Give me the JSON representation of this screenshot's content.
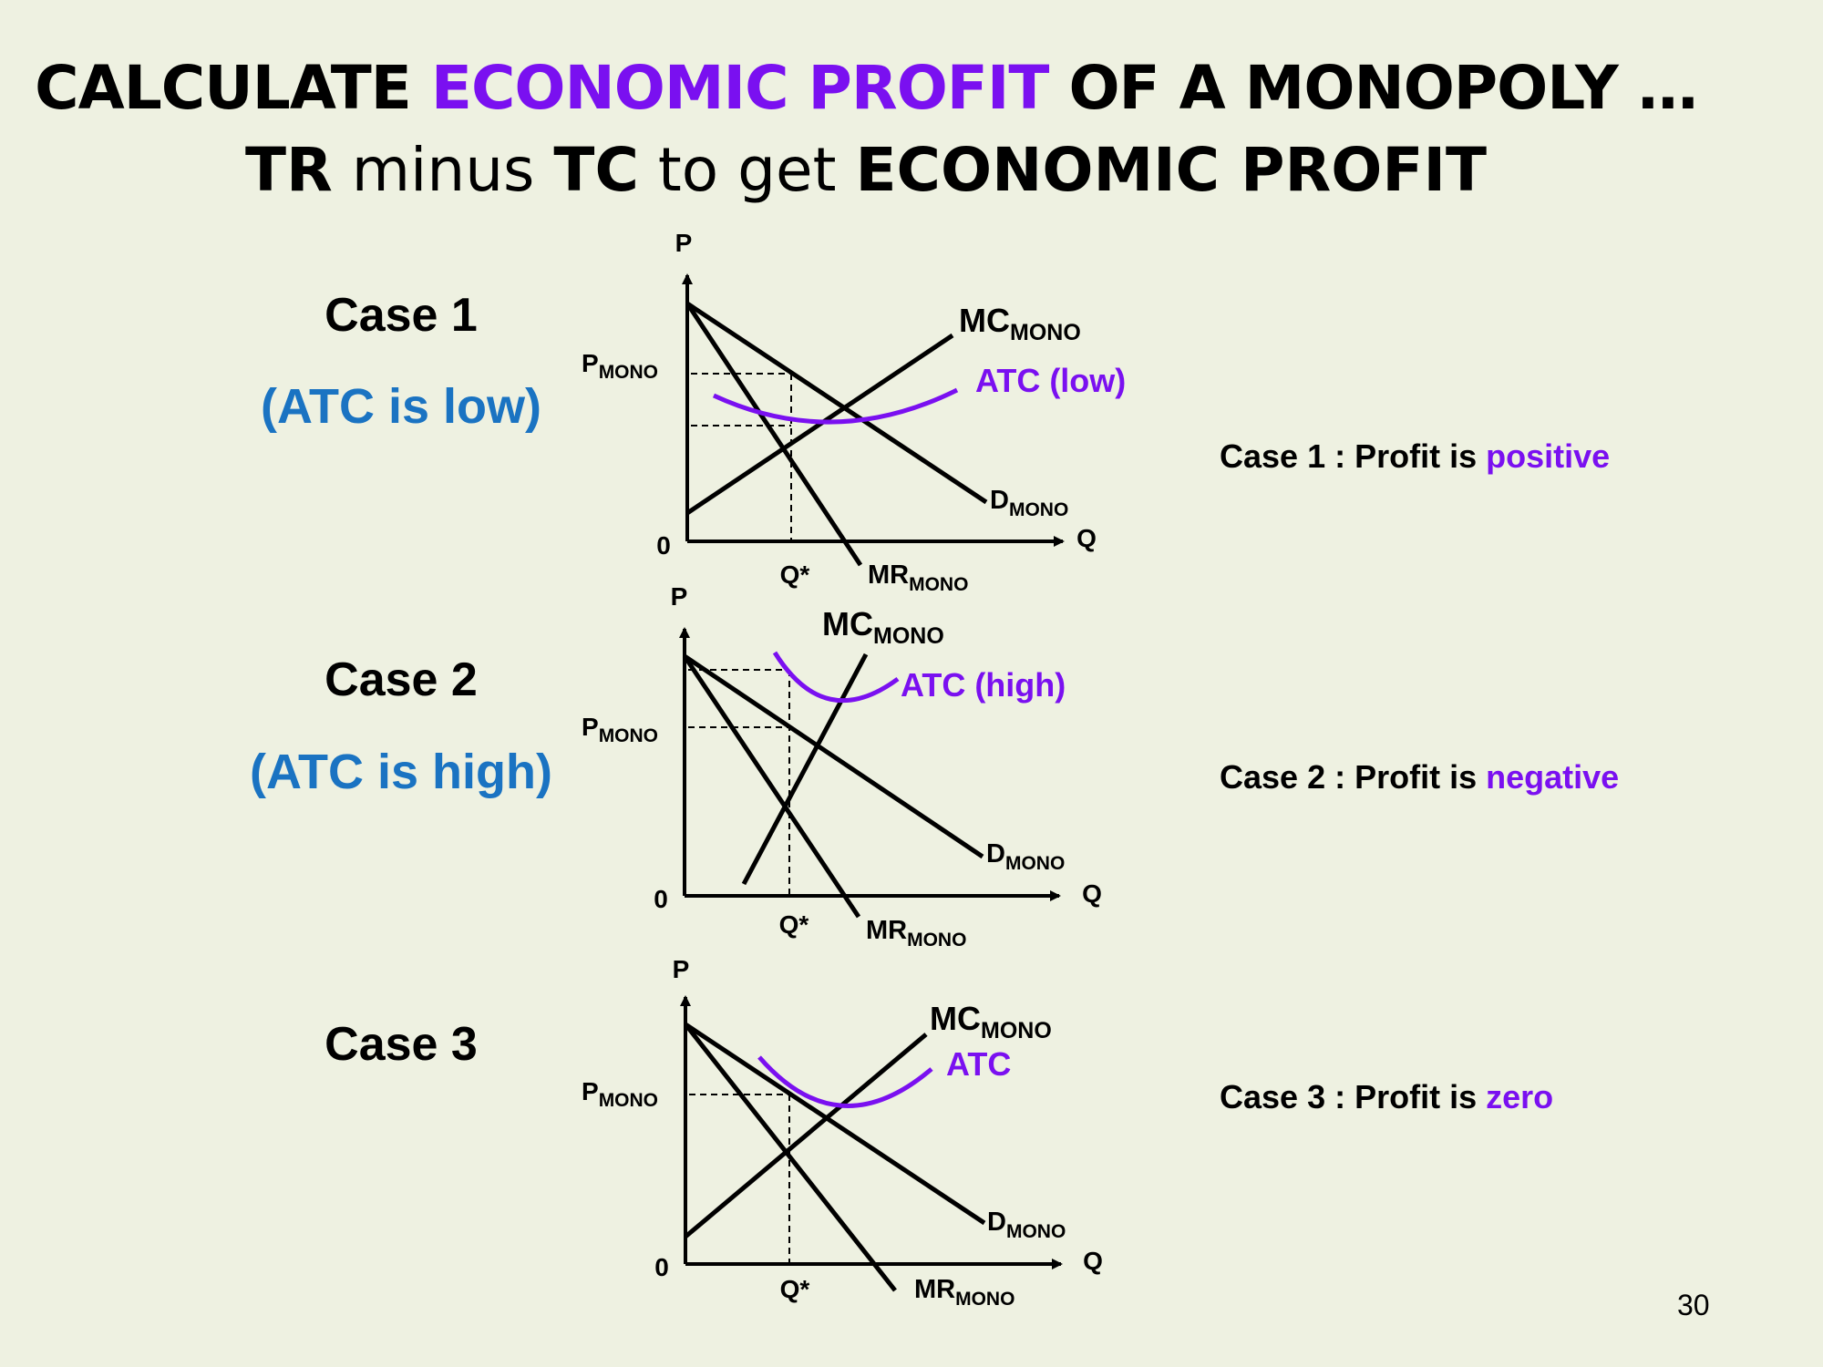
{
  "title": {
    "line1_part1": "CALCULATE ",
    "line1_accent": "ECONOMIC PROFIT",
    "line1_part2": " OF A MONOPOLY …",
    "line2_tr": "TR",
    "line2_minus": " minus ",
    "line2_tc": "TC",
    "line2_toget": " to get ",
    "line2_profit": "ECONOMIC PROFIT"
  },
  "cases": [
    {
      "label": "Case 1",
      "sublabel": "(ATC is low)",
      "result_prefix": "Case 1 : Profit is ",
      "result_value": "positive",
      "atc_label": "ATC (low)"
    },
    {
      "label": "Case 2",
      "sublabel": "(ATC is high)",
      "result_prefix": "Case 2 : Profit is ",
      "result_value": "negative",
      "atc_label": "ATC (high)"
    },
    {
      "label": "Case 3",
      "sublabel": "",
      "result_prefix": "Case 3 : Profit is ",
      "result_value": "zero",
      "atc_label": "ATC"
    }
  ],
  "graph_labels": {
    "p_axis": "P",
    "q_axis": "Q",
    "origin": "0",
    "q_star": "Q*",
    "p_mono": "P",
    "mono_sub": "MONO",
    "mc": "MC",
    "d": "D",
    "mr": "MR"
  },
  "page_number": "30",
  "colors": {
    "background": "#eef1e1",
    "accent_purple": "#7a10f0",
    "case_blue": "#1a73c2",
    "text": "#000000"
  }
}
